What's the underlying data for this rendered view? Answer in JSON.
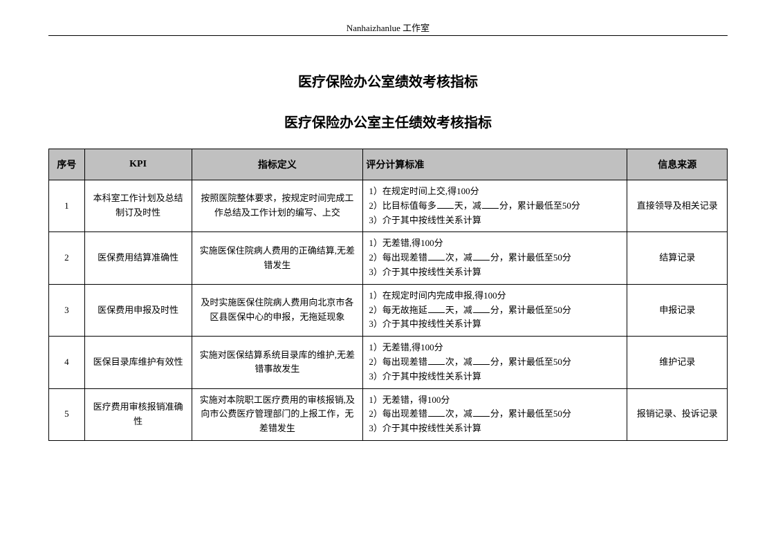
{
  "header": {
    "studio": "Nanhaizhanlue 工作室"
  },
  "titles": {
    "main": "医疗保险办公室绩效考核指标",
    "sub": "医疗保险办公室主任绩效考核指标"
  },
  "table": {
    "columns": {
      "seq": "序号",
      "kpi": "KPI",
      "def": "指标定义",
      "std": "评分计算标准",
      "src": "信息来源"
    },
    "rows": [
      {
        "seq": "1",
        "kpi": "本科室工作计划及总结制订及时性",
        "def": "按照医院整体要求，按规定时间完成工作总结及工作计划的编写、上交",
        "std_lines": [
          "1）在规定时间上交,得100分",
          "2）比目标值每多___天，减___分，累计最低至50分",
          "3）介于其中按线性关系计算"
        ],
        "src": "直接领导及相关记录"
      },
      {
        "seq": "2",
        "kpi": "医保费用结算准确性",
        "def": "实施医保住院病人费用的正确结算,无差错发生",
        "std_lines": [
          "1）无差错,得100分",
          "2）每出现差错__次，减__分，累计最低至50分",
          "3）介于其中按线性关系计算"
        ],
        "src": "结算记录"
      },
      {
        "seq": "3",
        "kpi": "医保费用申报及时性",
        "def": "及时实施医保住院病人费用向北京市各区县医保中心的申报，无拖延现象",
        "std_lines": [
          "1）在规定时间内完成申报,得100分",
          "2）每无故拖延__天，减__分，累计最低至50分",
          "3）介于其中按线性关系计算"
        ],
        "src": "申报记录"
      },
      {
        "seq": "4",
        "kpi": "医保目录库维护有效性",
        "def": "实施对医保结算系统目录库的维护,无差错事故发生",
        "std_lines": [
          "1）无差错,得100分",
          "2）每出现差错__次，减__分，累计最低至50分",
          "3）介于其中按线性关系计算"
        ],
        "src": "维护记录"
      },
      {
        "seq": "5",
        "kpi": "医疗费用审核报销准确性",
        "def": "实施对本院职工医疗费用的审核报销,及向市公费医疗管理部门的上报工作，无差错发生",
        "std_lines": [
          "1）无差错，得100分",
          "2）每出现差错__次，减__分，累计最低至50分",
          "3）介于其中按线性关系计算"
        ],
        "src": "报销记录、投诉记录"
      }
    ]
  }
}
